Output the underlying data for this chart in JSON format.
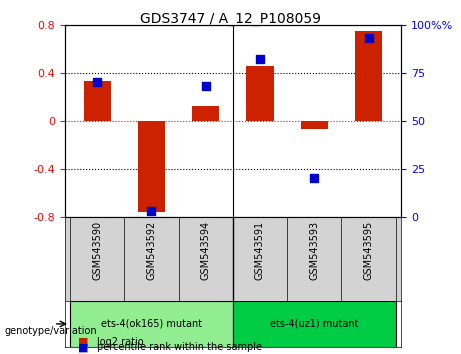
{
  "title": "GDS3747 / A_12_P108059",
  "samples": [
    "GSM543590",
    "GSM543592",
    "GSM543594",
    "GSM543591",
    "GSM543593",
    "GSM543595"
  ],
  "log2_ratio": [
    0.33,
    -0.76,
    0.12,
    0.46,
    -0.07,
    0.75
  ],
  "percentile_rank": [
    70,
    3,
    68,
    82,
    20,
    93
  ],
  "groups": [
    {
      "label": "ets-4(ok165) mutant",
      "samples": [
        0,
        1,
        2
      ],
      "color": "#90EE90"
    },
    {
      "label": "ets-4(uz1) mutant",
      "samples": [
        3,
        4,
        5
      ],
      "color": "#00CC44"
    }
  ],
  "bar_color": "#CC2200",
  "dot_color": "#0000CC",
  "ylim_left": [
    -0.8,
    0.8
  ],
  "ylim_right": [
    0,
    100
  ],
  "yticks_left": [
    -0.8,
    -0.4,
    0,
    0.4,
    0.8
  ],
  "yticks_right": [
    0,
    25,
    50,
    75,
    100
  ],
  "background_color": "#E8E8E8",
  "plot_bg": "#FFFFFF"
}
